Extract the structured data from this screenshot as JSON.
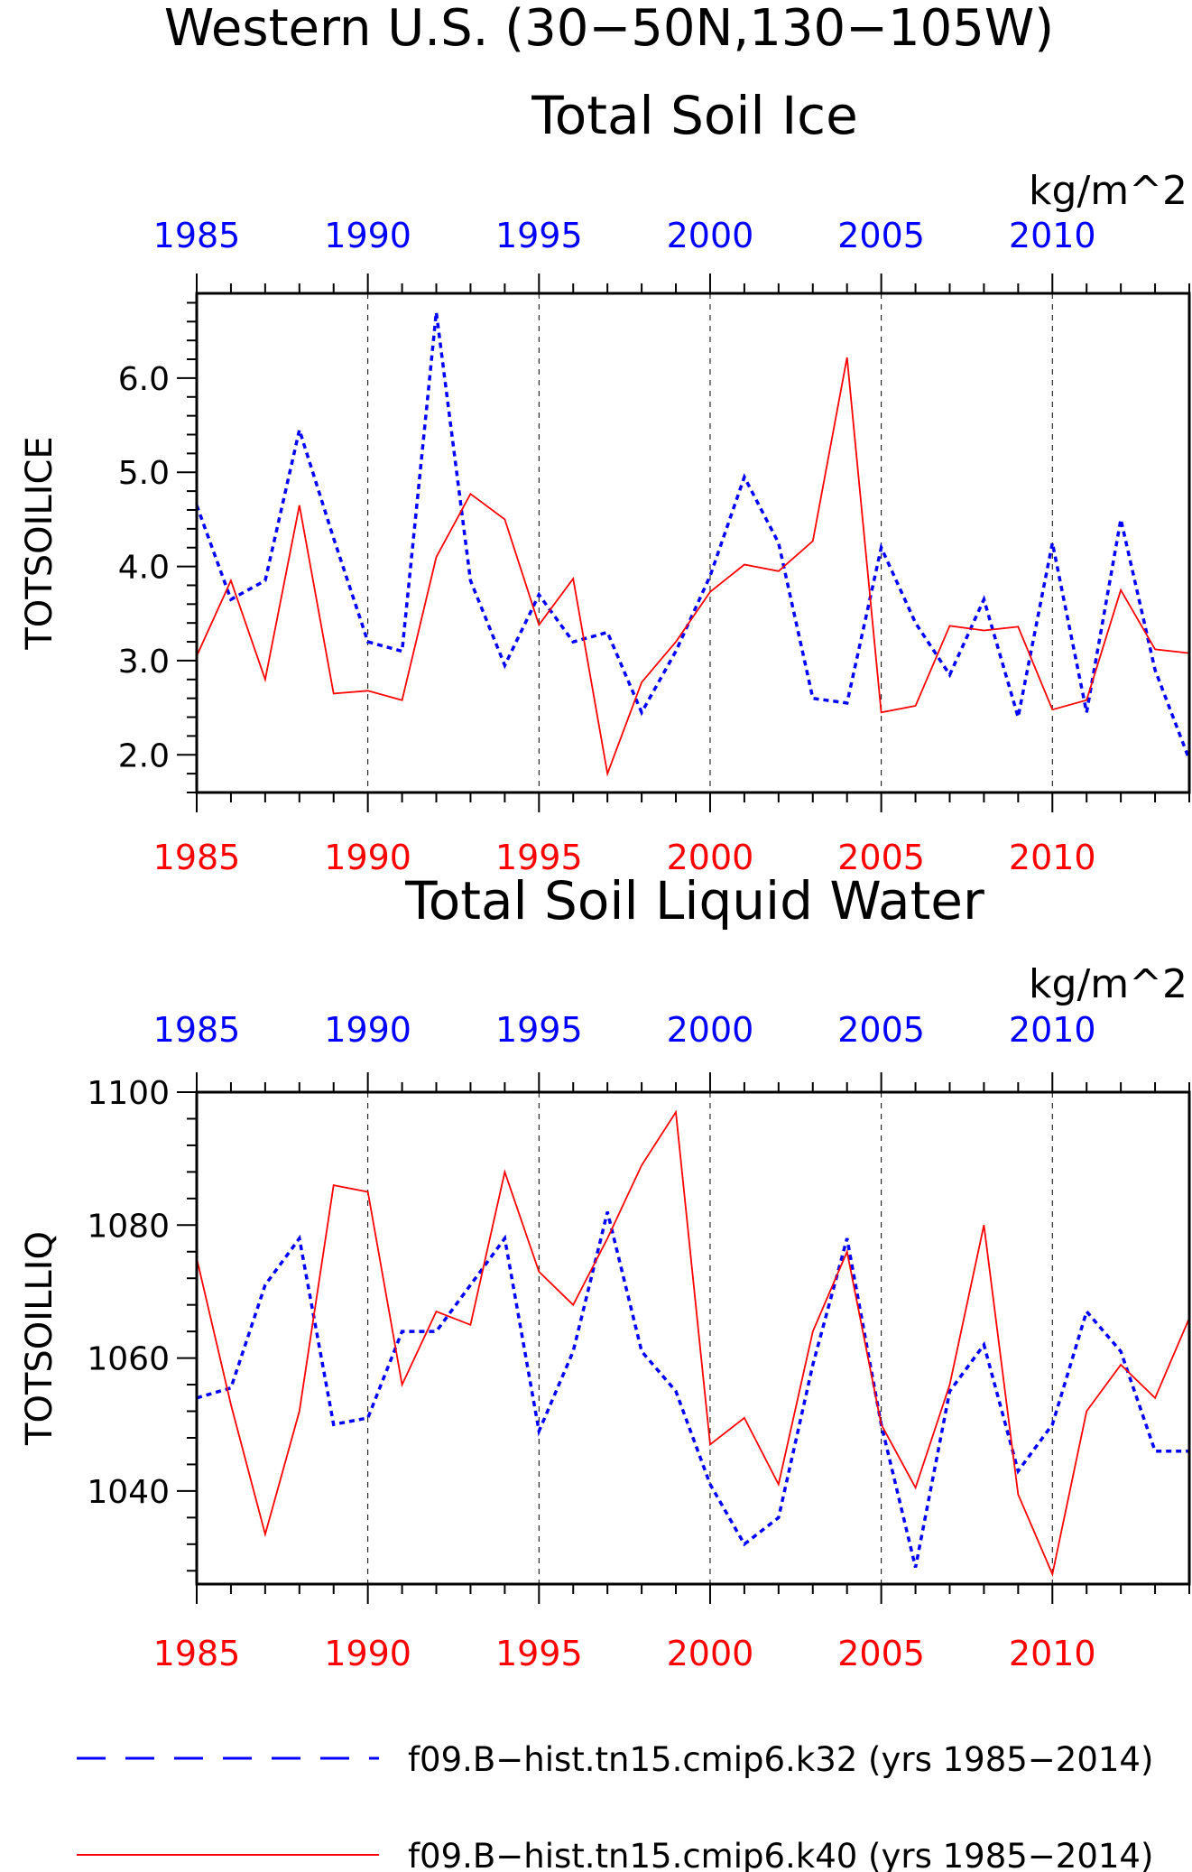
{
  "figure_title": "Western U.S. (30−50N,130−105W)",
  "colors": {
    "k32": "#0000ff",
    "k40": "#ff0000",
    "axis": "#000000"
  },
  "legend": [
    {
      "label": "f09.B−hist.tn15.cmip6.k32 (yrs 1985−2014)",
      "color": "#0000ff",
      "style": "dashed"
    },
    {
      "label": "f09.B−hist.tn15.cmip6.k40 (yrs 1985−2014)",
      "color": "#ff0000",
      "style": "solid"
    }
  ],
  "chart_data": [
    {
      "type": "line",
      "title": "Total Soil Ice",
      "units": "kg/m^2",
      "ylabel": "TOTSOILICE",
      "xlabel": "",
      "x": [
        1985,
        1986,
        1987,
        1988,
        1989,
        1990,
        1991,
        1992,
        1993,
        1994,
        1995,
        1996,
        1997,
        1998,
        1999,
        2000,
        2001,
        2002,
        2003,
        2004,
        2005,
        2006,
        2007,
        2008,
        2009,
        2010,
        2011,
        2012,
        2013,
        2014
      ],
      "xlim": [
        1985,
        2014
      ],
      "ylim": [
        1.6,
        6.9
      ],
      "yticks": [
        2.0,
        3.0,
        4.0,
        5.0,
        6.0
      ],
      "ytick_labels": [
        "2.0",
        "3.0",
        "4.0",
        "5.0",
        "6.0"
      ],
      "xticks": [
        1985,
        1990,
        1995,
        2000,
        2005,
        2010
      ],
      "xtick_labels": [
        "1985",
        "1990",
        "1995",
        "2000",
        "2005",
        "2010"
      ],
      "grid": "vertical dashed at 1990, 1995, 2000, 2005, 2010",
      "series": [
        {
          "name": "f09.B−hist.tn15.cmip6.k32 (yrs 1985−2014)",
          "color": "#0000ff",
          "style": "dashed",
          "values": [
            4.65,
            3.65,
            3.85,
            5.45,
            4.3,
            3.2,
            3.1,
            6.7,
            3.85,
            2.95,
            3.7,
            3.2,
            3.3,
            2.45,
            3.1,
            3.9,
            4.95,
            4.25,
            2.6,
            2.55,
            4.2,
            3.4,
            2.85,
            3.65,
            2.4,
            4.25,
            2.45,
            4.5,
            2.9,
            1.95
          ]
        },
        {
          "name": "f09.B−hist.tn15.cmip6.k40 (yrs 1985−2014)",
          "color": "#ff0000",
          "style": "solid",
          "values": [
            3.05,
            3.85,
            2.8,
            4.65,
            2.65,
            2.68,
            2.58,
            4.1,
            4.77,
            4.5,
            3.38,
            3.87,
            1.8,
            2.77,
            3.2,
            3.73,
            4.02,
            3.95,
            4.27,
            6.22,
            2.45,
            2.52,
            3.37,
            3.32,
            3.36,
            2.48,
            2.58,
            3.75,
            3.12,
            3.08
          ]
        }
      ]
    },
    {
      "type": "line",
      "title": "Total Soil Liquid Water",
      "units": "kg/m^2",
      "ylabel": "TOTSOILLIQ",
      "xlabel": "",
      "x": [
        1985,
        1986,
        1987,
        1988,
        1989,
        1990,
        1991,
        1992,
        1993,
        1994,
        1995,
        1996,
        1997,
        1998,
        1999,
        2000,
        2001,
        2002,
        2003,
        2004,
        2005,
        2006,
        2007,
        2008,
        2009,
        2010,
        2011,
        2012,
        2013,
        2014
      ],
      "xlim": [
        1985,
        2014
      ],
      "ylim": [
        1026,
        1100
      ],
      "yticks": [
        1040,
        1060,
        1080,
        1100
      ],
      "ytick_labels": [
        "1040",
        "1060",
        "1080",
        "1100"
      ],
      "xticks": [
        1985,
        1990,
        1995,
        2000,
        2005,
        2010
      ],
      "xtick_labels": [
        "1985",
        "1990",
        "1995",
        "2000",
        "2005",
        "2010"
      ],
      "grid": "vertical dashed at 1990, 1995, 2000, 2005, 2010",
      "series": [
        {
          "name": "f09.B−hist.tn15.cmip6.k32 (yrs 1985−2014)",
          "color": "#0000ff",
          "style": "dashed",
          "values": [
            1054,
            1055.5,
            1071,
            1078,
            1050,
            1051,
            1064,
            1064,
            1071,
            1078,
            1049,
            1061,
            1082,
            1061,
            1055,
            1041,
            1032,
            1036,
            1059,
            1078,
            1050,
            1028.5,
            1055,
            1062,
            1043,
            1050,
            1067,
            1061,
            1046,
            1046
          ]
        },
        {
          "name": "f09.B−hist.tn15.cmip6.k40 (yrs 1985−2014)",
          "color": "#ff0000",
          "style": "solid",
          "values": [
            1075,
            1053,
            1033.5,
            1052,
            1086,
            1085,
            1056,
            1067,
            1065,
            1088,
            1073,
            1068,
            1078,
            1089,
            1097,
            1047,
            1051,
            1041,
            1064,
            1076,
            1050,
            1040.5,
            1056,
            1080,
            1039.5,
            1027.5,
            1052,
            1059,
            1054,
            1066
          ]
        }
      ]
    }
  ]
}
